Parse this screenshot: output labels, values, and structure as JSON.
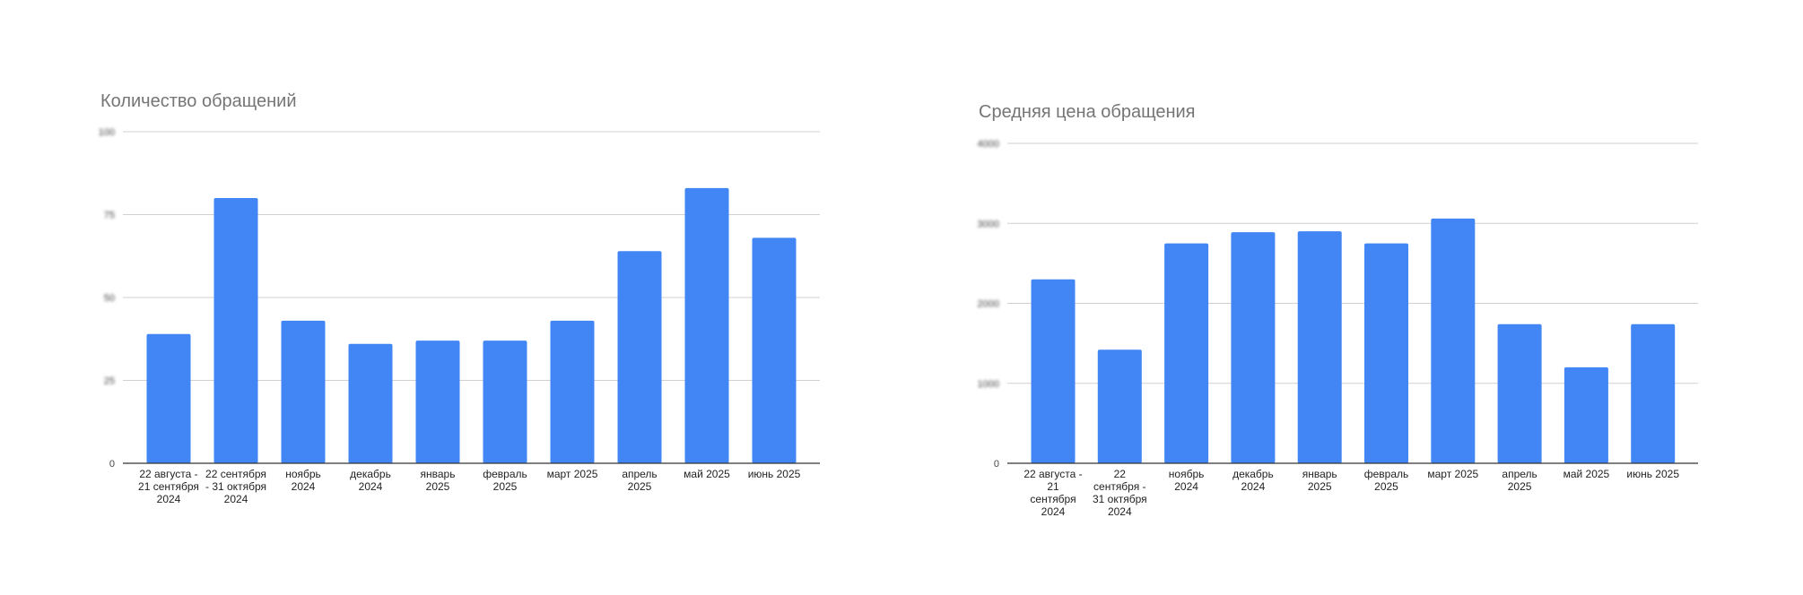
{
  "chart_data": [
    {
      "type": "bar",
      "title": "Количество обращений",
      "categories": [
        "22 августа - 21 сентября 2024",
        "22 сентября - 31 октября 2024",
        "ноябрь 2024",
        "декабрь 2024",
        "январь 2025",
        "февраль 2025",
        "март 2025",
        "апрель 2025",
        "май 2025",
        "июнь 2025"
      ],
      "category_lines": [
        [
          "22 августа -",
          "21 сентября",
          "2024"
        ],
        [
          "22 сентября",
          "- 31 октября",
          "2024"
        ],
        [
          "ноябрь",
          "2024"
        ],
        [
          "декабрь",
          "2024"
        ],
        [
          "январь",
          "2025"
        ],
        [
          "февраль",
          "2025"
        ],
        [
          "март 2025"
        ],
        [
          "апрель",
          "2025"
        ],
        [
          "май 2025"
        ],
        [
          "июнь 2025"
        ]
      ],
      "values": [
        39,
        80,
        43,
        36,
        37,
        37,
        43,
        64,
        83,
        68
      ],
      "yticks": [
        "0",
        "25",
        "50",
        "75",
        "100"
      ],
      "ytick_values": [
        0,
        25,
        50,
        75,
        100
      ],
      "ytick_labels_blurred": true,
      "ylim": [
        0,
        100
      ],
      "xlabel": "",
      "ylabel": "",
      "grid": true,
      "color": "#4285f4"
    },
    {
      "type": "bar",
      "title": "Средняя цена обращения",
      "categories": [
        "22 августа - 21 сентября 2024",
        "22 сентября - 31 октября 2024",
        "ноябрь 2024",
        "декабрь 2024",
        "январь 2025",
        "февраль 2025",
        "март 2025",
        "апрель 2025",
        "май 2025",
        "июнь 2025"
      ],
      "category_lines": [
        [
          "22 августа -",
          "21",
          "сентября",
          "2024"
        ],
        [
          "22",
          "сентября -",
          "31 октября",
          "2024"
        ],
        [
          "ноябрь",
          "2024"
        ],
        [
          "декабрь",
          "2024"
        ],
        [
          "январь",
          "2025"
        ],
        [
          "февраль",
          "2025"
        ],
        [
          "март 2025"
        ],
        [
          "апрель",
          "2025"
        ],
        [
          "май 2025"
        ],
        [
          "июнь 2025"
        ]
      ],
      "values": [
        2300,
        1420,
        2750,
        2890,
        2900,
        2750,
        3060,
        1740,
        1200,
        1740
      ],
      "yticks": [
        "0",
        "1000",
        "2000",
        "3000",
        "4000"
      ],
      "ytick_values": [
        0,
        1000,
        2000,
        3000,
        4000
      ],
      "ytick_labels_blurred": true,
      "ylim": [
        0,
        4000
      ],
      "xlabel": "",
      "ylabel": "",
      "grid": true,
      "color": "#4285f4"
    }
  ]
}
